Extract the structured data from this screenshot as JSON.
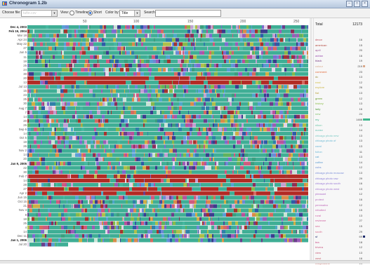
{
  "window": {
    "title": "Chronogram 1.2b",
    "minimize": "–",
    "maximize": "□",
    "close": "×"
  },
  "toolbar": {
    "choose_file_label": "Choose file:",
    "choose_file_value": "tufte.csv",
    "view_label": "View:",
    "view_options": [
      "Timeline",
      "Short"
    ],
    "view_selected": "Short",
    "color_label": "Color by:",
    "color_value": "Title",
    "search_label": "Search:",
    "search_value": ""
  },
  "x_ticks": [
    "50",
    "100",
    "150",
    "200",
    "250"
  ],
  "row_labels": [
    {
      "text": "Dec 4, 2003",
      "bold": true
    },
    {
      "text": "Feb 19, 2004",
      "bold": true
    },
    {
      "text": "Mar 18"
    },
    {
      "text": "Apr 24"
    },
    {
      "text": "May 22"
    },
    {
      "text": "27"
    },
    {
      "text": "Jun 5"
    },
    {
      "text": "11"
    },
    {
      "text": "18"
    },
    {
      "text": "25"
    },
    {
      "text": "24"
    },
    {
      "text": "30"
    },
    {
      "text": "20"
    },
    {
      "text": "13"
    },
    {
      "text": "Jul 13"
    },
    {
      "text": "15"
    },
    {
      "text": "23"
    },
    {
      "text": "25"
    },
    {
      "text": "30"
    },
    {
      "text": "Aug 7"
    },
    {
      "text": "7"
    },
    {
      "text": "14"
    },
    {
      "text": "20"
    },
    {
      "text": "26"
    },
    {
      "text": "Sep 6"
    },
    {
      "text": "14"
    },
    {
      "text": "Oct 5"
    },
    {
      "text": "19"
    },
    {
      "text": "26"
    },
    {
      "text": "Nov 2"
    },
    {
      "text": "14"
    },
    {
      "text": "20"
    },
    {
      "text": "Jan 9, 2005",
      "bold": true
    },
    {
      "text": "22"
    },
    {
      "text": "30"
    },
    {
      "text": "Feb 7"
    },
    {
      "text": "14"
    },
    {
      "text": "28"
    },
    {
      "text": "27"
    },
    {
      "text": "Apr 2"
    },
    {
      "text": "Jun 15"
    },
    {
      "text": "Oct 15"
    },
    {
      "text": "21"
    },
    {
      "text": "Nov 4"
    },
    {
      "text": "8"
    },
    {
      "text": "18"
    },
    {
      "text": "25"
    },
    {
      "text": "4"
    },
    {
      "text": "14"
    },
    {
      "text": "Dec 11"
    },
    {
      "text": "Jan 1, 2006",
      "bold": true
    },
    {
      "text": "Jul 20"
    }
  ],
  "legend": {
    "header_label": "Total",
    "header_count": "12173",
    "items": [
      {
        "name": "decor",
        "count": "16",
        "color": "#c24b5a"
      },
      {
        "name": "american",
        "count": "15",
        "color": "#b3483f"
      },
      {
        "name": "april",
        "count": "20",
        "color": "#a05a9a"
      },
      {
        "name": "adrian",
        "count": "16",
        "color": "#9b4fb0"
      },
      {
        "name": "black",
        "count": "19",
        "color": "#7a3b86"
      },
      {
        "name": "colour",
        "count": "219",
        "color": "#d9a88a",
        "bar": 0.12
      },
      {
        "name": "comment",
        "count": "23",
        "color": "#e36b3a"
      },
      {
        "name": "dc",
        "count": "13",
        "color": "#9d8f3a"
      },
      {
        "name": "east",
        "count": "12",
        "color": "#d4c252"
      },
      {
        "name": "explore",
        "count": "26",
        "color": "#cdb84b"
      },
      {
        "name": "flat",
        "count": "13",
        "color": "#bfa84a"
      },
      {
        "name": "green",
        "count": "12",
        "color": "#6a9a2e"
      },
      {
        "name": "history",
        "count": "13",
        "color": "#8bbd4a"
      },
      {
        "name": "lady",
        "count": "16",
        "color": "#4f9a3c"
      },
      {
        "name": "new",
        "count": "24",
        "color": "#7fc06a"
      },
      {
        "name": "my",
        "count": "1488",
        "color": "#3fb88f",
        "bar": 0.45
      },
      {
        "name": "nikon",
        "count": "13",
        "color": "#6fc7a8"
      },
      {
        "name": "nunez",
        "count": "14",
        "color": "#5fbfb0"
      },
      {
        "name": "chicago photo new",
        "count": "13",
        "color": "#79c9c4"
      },
      {
        "name": "chicago photo of",
        "count": "13",
        "color": "#6ab8d3"
      },
      {
        "name": "coral",
        "count": "13",
        "color": "#63b2d6"
      },
      {
        "name": "fulton",
        "count": "11",
        "color": "#6fb9d8"
      },
      {
        "name": "cat",
        "count": "13",
        "color": "#5aa6cf"
      },
      {
        "name": "coffee",
        "count": "14",
        "color": "#5b9ad0"
      },
      {
        "name": "cubs",
        "count": "12",
        "color": "#6f8fd4"
      },
      {
        "name": "chicago photo moscow",
        "count": "13",
        "color": "#7b8fd8"
      },
      {
        "name": "chicago photo raw",
        "count": "29",
        "color": "#8a7fd8"
      },
      {
        "name": "chicago photo south",
        "count": "16",
        "color": "#9a7bd6"
      },
      {
        "name": "chicago photo west",
        "count": "13",
        "color": "#a67ad0"
      },
      {
        "name": "pleasant",
        "count": "12",
        "color": "#b06fc8"
      },
      {
        "name": "protect",
        "count": "16",
        "color": "#b76fbf"
      },
      {
        "name": "pennsalvo",
        "count": "12",
        "color": "#c06ab8"
      },
      {
        "name": "rebutted",
        "count": "15",
        "color": "#c767b1"
      },
      {
        "name": "rural",
        "count": "13",
        "color": "#cf65a9"
      },
      {
        "name": "revienne",
        "count": "27",
        "color": "#d064a0"
      },
      {
        "name": "sea",
        "count": "15",
        "color": "#d86a98"
      },
      {
        "name": "south",
        "count": "29",
        "color": "#d96e8f"
      },
      {
        "name": "sf",
        "count": "69",
        "color": "#1d2a6b",
        "bar": 0.1
      },
      {
        "name": "tea",
        "count": "18",
        "color": "#c94f8a"
      },
      {
        "name": "trivera",
        "count": "12",
        "color": "#cb5b82"
      },
      {
        "name": "view",
        "count": "13",
        "color": "#c95f7a"
      },
      {
        "name": "west",
        "count": "16",
        "color": "#c76771"
      },
      {
        "name": "wikipedians",
        "count": "14",
        "color": "#c56e68"
      }
    ]
  },
  "palette": [
    "#3fae95",
    "#45b8a0",
    "#4da7c9",
    "#59a0d6",
    "#6b8ad6",
    "#7d6ccf",
    "#9a5db7",
    "#b9519c",
    "#cf5a7e",
    "#d56a61",
    "#d98c49",
    "#cfae44",
    "#aebf4a",
    "#86b94c",
    "#5fb35e",
    "#3c9e7e",
    "#2f7fa8",
    "#2d5ca6",
    "#3b3d8e",
    "#6b3f8c",
    "#8b2f5a",
    "#a5342d",
    "#c2a0d2",
    "#e1d3e8",
    "#c8e3d6"
  ],
  "status": ""
}
